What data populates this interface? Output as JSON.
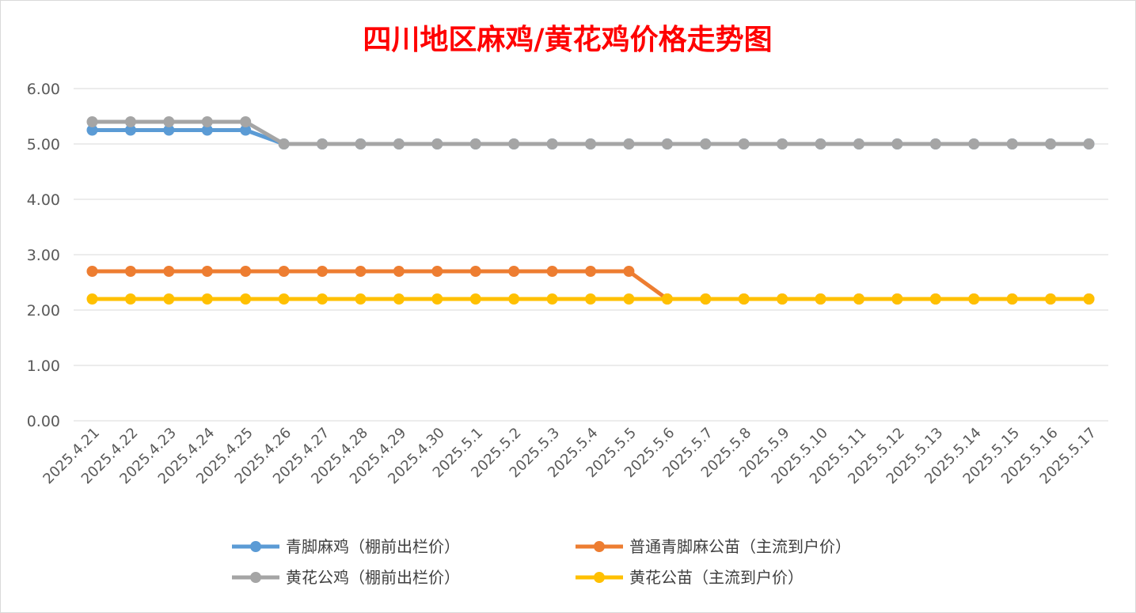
{
  "chart_data": {
    "type": "line",
    "title": "四川地区麻鸡/黄花鸡价格走势图",
    "title_color": "#ff0000",
    "xlabel": "",
    "ylabel": "",
    "ylim": [
      0,
      6
    ],
    "yticks": [
      "0.00",
      "1.00",
      "2.00",
      "3.00",
      "4.00",
      "5.00",
      "6.00"
    ],
    "grid": true,
    "legend_position": "bottom",
    "categories": [
      "2025.4.21",
      "2025.4.22",
      "2025.4.23",
      "2025.4.24",
      "2025.4.25",
      "2025.4.26",
      "2025.4.27",
      "2025.4.28",
      "2025.4.29",
      "2025.4.30",
      "2025.5.1",
      "2025.5.2",
      "2025.5.3",
      "2025.5.4",
      "2025.5.5",
      "2025.5.6",
      "2025.5.7",
      "2025.5.8",
      "2025.5.9",
      "2025.5.10",
      "2025.5.11",
      "2025.5.12",
      "2025.5.13",
      "2025.5.14",
      "2025.5.15",
      "2025.5.16",
      "2025.5.17"
    ],
    "series": [
      {
        "name": "青脚麻鸡（棚前出栏价）",
        "color": "#5b9bd5",
        "values": [
          5.25,
          5.25,
          5.25,
          5.25,
          5.25,
          5.0,
          5.0,
          5.0,
          5.0,
          5.0,
          5.0,
          5.0,
          5.0,
          5.0,
          5.0,
          5.0,
          5.0,
          5.0,
          5.0,
          5.0,
          5.0,
          5.0,
          5.0,
          5.0,
          5.0,
          5.0,
          5.0
        ]
      },
      {
        "name": "普通青脚麻公苗（主流到户价）",
        "color": "#ed7d31",
        "values": [
          2.7,
          2.7,
          2.7,
          2.7,
          2.7,
          2.7,
          2.7,
          2.7,
          2.7,
          2.7,
          2.7,
          2.7,
          2.7,
          2.7,
          2.7,
          2.2,
          2.2,
          2.2,
          2.2,
          2.2,
          2.2,
          2.2,
          2.2,
          2.2,
          2.2,
          2.2,
          2.2
        ]
      },
      {
        "name": "黄花公鸡（棚前出栏价）",
        "color": "#a5a5a5",
        "values": [
          5.4,
          5.4,
          5.4,
          5.4,
          5.4,
          5.0,
          5.0,
          5.0,
          5.0,
          5.0,
          5.0,
          5.0,
          5.0,
          5.0,
          5.0,
          5.0,
          5.0,
          5.0,
          5.0,
          5.0,
          5.0,
          5.0,
          5.0,
          5.0,
          5.0,
          5.0,
          5.0
        ]
      },
      {
        "name": "黄花公苗（主流到户价）",
        "color": "#ffc000",
        "values": [
          2.2,
          2.2,
          2.2,
          2.2,
          2.2,
          2.2,
          2.2,
          2.2,
          2.2,
          2.2,
          2.2,
          2.2,
          2.2,
          2.2,
          2.2,
          2.2,
          2.2,
          2.2,
          2.2,
          2.2,
          2.2,
          2.2,
          2.2,
          2.2,
          2.2,
          2.2,
          2.2
        ]
      }
    ]
  }
}
